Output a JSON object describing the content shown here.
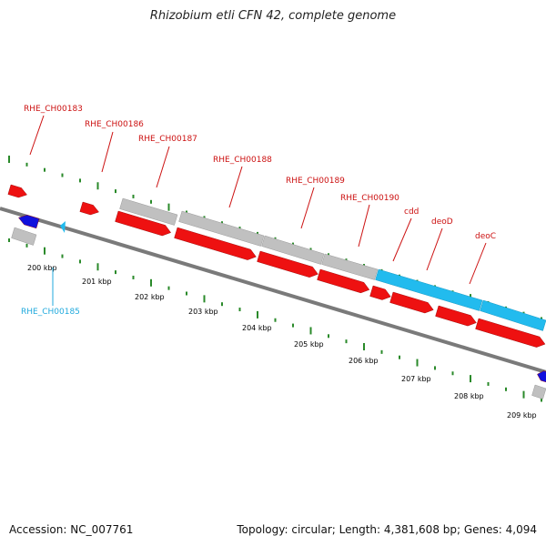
{
  "title": "Rhizobium etli CFN 42, complete genome",
  "accession": "Accession: NC_007761",
  "genome_stats": "Topology: circular; Length: 4,381,608 bp; Genes: 4,094",
  "colors": {
    "forward_gene": "#ee1111",
    "reverse_gene": "#1111dd",
    "rna_gene": "#22bbee",
    "gene_span": "#c0c0c0",
    "backbone": "#7a7a7a",
    "ticks": "#2a8a2a",
    "label_red": "#cc1111",
    "label_cyan": "#22aadd"
  },
  "scale_ticks": [
    "200 kbp",
    "201 kbp",
    "202 kbp",
    "203 kbp",
    "204 kbp",
    "205 kbp",
    "206 kbp",
    "207 kbp",
    "208 kbp",
    "209 kbp"
  ],
  "gene_labels": [
    {
      "text": "RHE_CH00183",
      "color": "label_red"
    },
    {
      "text": "RHE_CH00186",
      "color": "label_red"
    },
    {
      "text": "RHE_CH00187",
      "color": "label_red"
    },
    {
      "text": "RHE_CH00188",
      "color": "label_red"
    },
    {
      "text": "RHE_CH00189",
      "color": "label_red"
    },
    {
      "text": "RHE_CH00190",
      "color": "label_red"
    },
    {
      "text": "cdd",
      "color": "label_red"
    },
    {
      "text": "deoD",
      "color": "label_red"
    },
    {
      "text": "deoC",
      "color": "label_red"
    },
    {
      "text": "RHE_CH00185",
      "color": "label_cyan"
    }
  ]
}
